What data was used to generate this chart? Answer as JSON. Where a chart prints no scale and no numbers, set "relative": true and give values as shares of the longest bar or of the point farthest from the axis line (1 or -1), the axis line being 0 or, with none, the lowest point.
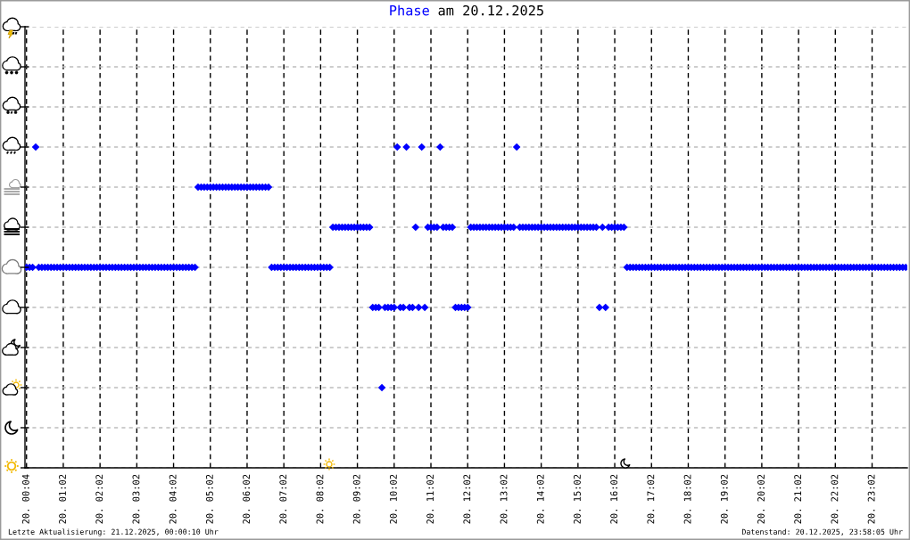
{
  "chart_data": {
    "type": "scatter",
    "title": "Phase am 20.12.2025",
    "categories": [
      "20. 00:04",
      null,
      null,
      null,
      null,
      null,
      null,
      null,
      null,
      null,
      null,
      null,
      "20. 01:02",
      null,
      null,
      null,
      null,
      null,
      null,
      null,
      null,
      null,
      null,
      null,
      "20. 02:02",
      null,
      null,
      null,
      null,
      null,
      null,
      null,
      null,
      null,
      null,
      null,
      "20. 03:02",
      null,
      null,
      null,
      null,
      null,
      null,
      null,
      null,
      null,
      null,
      null,
      "20. 04:02",
      null,
      null,
      null,
      null,
      null,
      null,
      null,
      null,
      null,
      null,
      null,
      "20. 05:02",
      null,
      null,
      null,
      null,
      null,
      null,
      null,
      null,
      null,
      null,
      null,
      "20. 06:02",
      null,
      null,
      null,
      null,
      null,
      null,
      null,
      null,
      null,
      null,
      null,
      "20. 07:02",
      null,
      null,
      null,
      null,
      null,
      null,
      null,
      null,
      null,
      null,
      null,
      "20. 08:02",
      null,
      null,
      null,
      null,
      null,
      null,
      null,
      null,
      null,
      null,
      null,
      "20. 09:02",
      null,
      null,
      null,
      null,
      null,
      null,
      null,
      null,
      null,
      null,
      null,
      "20. 10:02",
      null,
      null,
      null,
      null,
      null,
      null,
      null,
      null,
      null,
      null,
      null,
      "20. 11:02",
      null,
      null,
      null,
      null,
      null,
      null,
      null,
      null,
      null,
      null,
      null,
      "20. 12:02",
      null,
      null,
      null,
      null,
      null,
      null,
      null,
      null,
      null,
      null,
      null,
      "20. 13:02",
      null,
      null,
      null,
      null,
      null,
      null,
      null,
      null,
      null,
      null,
      null,
      "20. 14:02",
      null,
      null,
      null,
      null,
      null,
      null,
      null,
      null,
      null,
      null,
      null,
      "20. 15:02",
      null,
      null,
      null,
      null,
      null,
      null,
      null,
      null,
      null,
      null,
      null,
      "20. 16:02",
      null,
      null,
      null,
      null,
      null,
      null,
      null,
      null,
      null,
      null,
      null,
      "20. 17:02",
      null,
      null,
      null,
      null,
      null,
      null,
      null,
      null,
      null,
      null,
      null,
      "20. 18:02",
      null,
      null,
      null,
      null,
      null,
      null,
      null,
      null,
      null,
      null,
      null,
      "20. 19:02",
      null,
      null,
      null,
      null,
      null,
      null,
      null,
      null,
      null,
      null,
      null,
      "20. 20:02",
      null,
      null,
      null,
      null,
      null,
      null,
      null,
      null,
      null,
      null,
      null,
      "20. 21:02",
      null,
      null,
      null,
      null,
      null,
      null,
      null,
      null,
      null,
      null,
      null,
      "20. 22:02",
      null,
      null,
      null,
      null,
      null,
      null,
      null,
      null,
      null,
      null,
      null,
      "20. 23:02",
      null,
      null,
      null,
      null,
      null,
      null,
      null,
      null,
      null,
      null,
      null
    ],
    "values": [
      0.625,
      0.625,
      0.625,
      1,
      0.625,
      0.625,
      0.625,
      0.625,
      0.625,
      0.625,
      0.625,
      0.625,
      0.625,
      0.625,
      0.625,
      0.625,
      0.625,
      0.625,
      0.625,
      0.625,
      0.625,
      0.625,
      0.625,
      0.625,
      0.625,
      0.625,
      0.625,
      0.625,
      0.625,
      0.625,
      0.625,
      0.625,
      0.625,
      0.625,
      0.625,
      0.625,
      0.625,
      0.625,
      0.625,
      0.625,
      0.625,
      0.625,
      0.625,
      0.625,
      0.625,
      0.625,
      0.625,
      0.625,
      0.625,
      0.625,
      0.625,
      0.625,
      0.625,
      0.625,
      0.625,
      0.625,
      0.875,
      0.875,
      0.875,
      0.875,
      0.875,
      0.875,
      0.875,
      0.875,
      0.875,
      0.875,
      0.875,
      0.875,
      0.875,
      0.875,
      0.875,
      0.875,
      0.875,
      0.875,
      0.875,
      0.875,
      0.875,
      0.875,
      0.875,
      0.875,
      0.625,
      0.625,
      0.625,
      0.625,
      0.625,
      0.625,
      0.625,
      0.625,
      0.625,
      0.625,
      0.625,
      0.625,
      0.625,
      0.625,
      0.625,
      0.625,
      0.625,
      0.625,
      0.625,
      0.625,
      0.75,
      0.75,
      0.75,
      0.75,
      0.75,
      0.75,
      0.75,
      0.75,
      0.75,
      0.75,
      0.75,
      0.75,
      0.75,
      0.5,
      0.5,
      0.5,
      0.25,
      0.5,
      0.5,
      0.5,
      0.5,
      1,
      0.5,
      0.5,
      1,
      0.5,
      0.5,
      0.75,
      0.5,
      1,
      0.5,
      0.75,
      0.75,
      0.75,
      0.75,
      1,
      0.75,
      0.75,
      0.75,
      0.75,
      0.5,
      0.5,
      0.5,
      0.5,
      0.5,
      0.75,
      0.75,
      0.75,
      0.75,
      0.75,
      0.75,
      0.75,
      0.75,
      0.75,
      0.75,
      0.75,
      0.75,
      0.75,
      0.75,
      0.75,
      1,
      0.75,
      0.75,
      0.75,
      0.75,
      0.75,
      0.75,
      0.75,
      0.75,
      0.75,
      0.75,
      0.75,
      0.75,
      0.75,
      0.75,
      0.75,
      0.75,
      0.75,
      0.75,
      0.75,
      0.75,
      0.75,
      0.75,
      0.75,
      0.75,
      0.75,
      0.75,
      0.5,
      0.75,
      0.5,
      0.75,
      0.75,
      0.75,
      0.75,
      0.75,
      0.75,
      0.625,
      0.625,
      0.625,
      0.625,
      0.625,
      0.625,
      0.625,
      0.625,
      0.625,
      0.625,
      0.625,
      0.625,
      0.625,
      0.625,
      0.625,
      0.625,
      0.625,
      0.625,
      0.625,
      0.625,
      0.625,
      0.625,
      0.625,
      0.625,
      0.625,
      0.625,
      0.625,
      0.625,
      0.625,
      0.625,
      0.625,
      0.625,
      0.625,
      0.625,
      0.625,
      0.625,
      0.625,
      0.625,
      0.625,
      0.625,
      0.625,
      0.625,
      0.625,
      0.625,
      0.625,
      0.625,
      0.625,
      0.625,
      0.625,
      0.625,
      0.625,
      0.625,
      0.625,
      0.625,
      0.625,
      0.625,
      0.625,
      0.625,
      0.625,
      0.625,
      0.625,
      0.625,
      0.625,
      0.625,
      0.625,
      0.625,
      0.625,
      0.625,
      0.625,
      0.625,
      0.625,
      0.625,
      0.625,
      0.625,
      0.625,
      0.625,
      0.625,
      0.625,
      0.625,
      0.625,
      0.625,
      0.625,
      0.625,
      0.625,
      0.625,
      0.625,
      0.625,
      0.625,
      0.625,
      0.625,
      0.625,
      0.625
    ],
    "relative": true,
    "color": "#0000ff",
    "marker": "diamond",
    "tick_labels": "x",
    "grid": true,
    "annotations": [
      "Letzte Aktualisierung: 21.12.2025, 00:00:10 Uhr",
      "Datenstand: 20.12.2025, 23:58:05 Uhr"
    ]
  }
}
